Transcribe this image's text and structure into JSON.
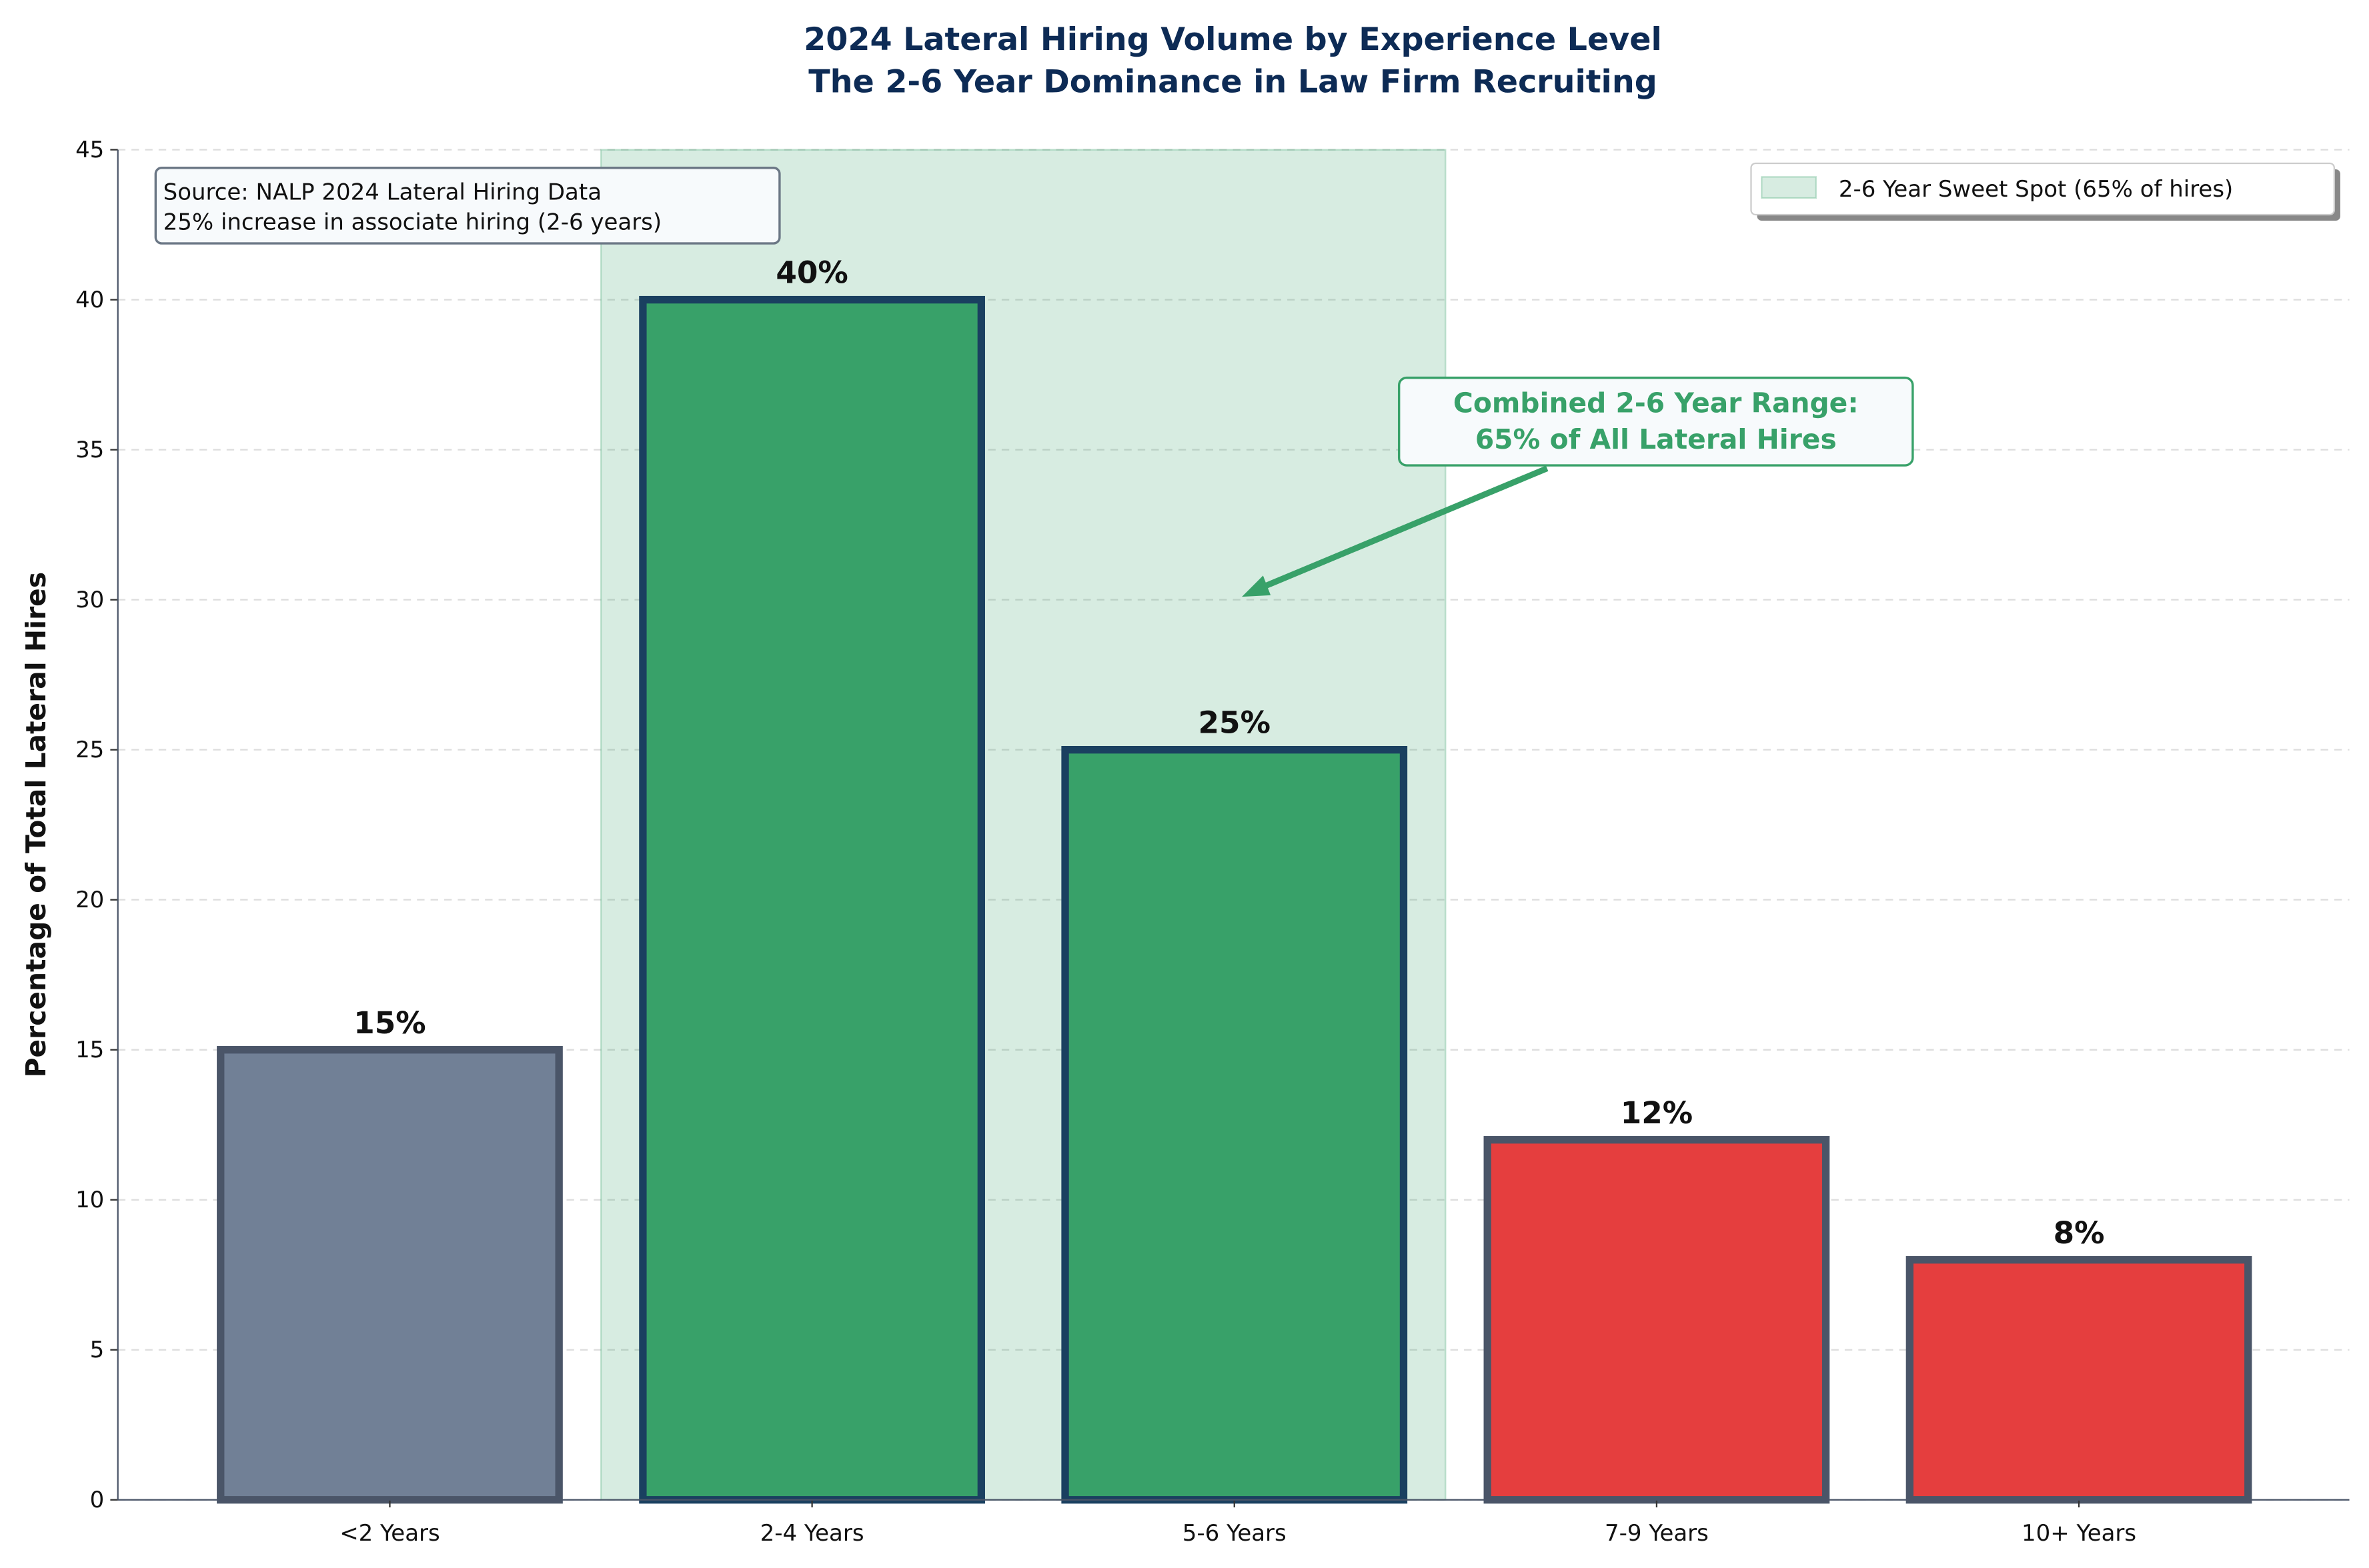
{
  "chart_data": {
    "type": "bar",
    "title": "2024 Lateral Hiring Volume by Experience Level",
    "subtitle": "The 2-6 Year Dominance in Law Firm Recruiting",
    "xlabel": "",
    "ylabel": "Percentage of Total Lateral Hires",
    "categories": [
      "<2 Years",
      "2-4 Years",
      "5-6 Years",
      "7-9 Years",
      "10+ Years"
    ],
    "values": [
      15,
      40,
      25,
      12,
      8
    ],
    "value_labels": [
      "15%",
      "40%",
      "25%",
      "12%",
      "8%"
    ],
    "bar_colors": [
      "#718096",
      "#38a169",
      "#38a169",
      "#e53e3e",
      "#e53e3e"
    ],
    "edge_colors": [
      "#4a5568",
      "#1a4060",
      "#1a4060",
      "#4a5568",
      "#4a5568"
    ],
    "ylim": [
      0,
      45
    ],
    "yticks": [
      0,
      5,
      10,
      15,
      20,
      25,
      30,
      35,
      40,
      45
    ],
    "grid": "y-dashed",
    "highlight_span": {
      "from_category": "2-4 Years",
      "to_category": "5-6 Years",
      "color": "#38a169",
      "label": "2-6 Year Sweet Spot (65% of hires)"
    },
    "legend": {
      "placement": "top-right",
      "entries": [
        "2-6 Year Sweet Spot (65% of hires)"
      ]
    },
    "source_box": {
      "lines": [
        "Source: NALP 2024 Lateral Hiring Data",
        "25% increase in associate hiring (2-6 years)"
      ]
    },
    "annotation": {
      "lines": [
        "Combined 2-6 Year Range:",
        "65% of All Lateral Hires"
      ],
      "color": "#38a169",
      "points_to": {
        "category_index": 2,
        "y": 30
      }
    },
    "title_color": "#0d2b55"
  }
}
